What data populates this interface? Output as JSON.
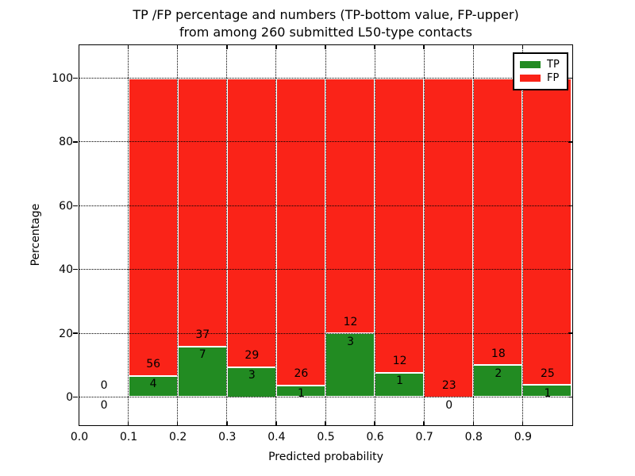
{
  "title": {
    "line1": "TP /FP percentage and numbers (TP-bottom value, FP-upper)",
    "line2": "from among 260 submitted L50-type contacts"
  },
  "chart_data": {
    "type": "bar",
    "stacked": true,
    "normalized_to_percent": true,
    "total_contacts": 260,
    "xlabel": "Predicted probability",
    "ylabel": "Percentage",
    "bin_starts": [
      0.0,
      0.1,
      0.2,
      0.3,
      0.4,
      0.5,
      0.6,
      0.7,
      0.8,
      0.9
    ],
    "bin_width": 0.1,
    "series": [
      {
        "name": "TP",
        "color": "#228b22",
        "counts": [
          0,
          4,
          7,
          3,
          1,
          3,
          1,
          0,
          2,
          1
        ]
      },
      {
        "name": "FP",
        "color": "#fa2318",
        "counts": [
          0,
          56,
          37,
          29,
          26,
          12,
          12,
          23,
          18,
          25
        ]
      }
    ],
    "tp_percent": [
      0,
      6.67,
      15.91,
      9.38,
      3.7,
      20.0,
      7.69,
      0,
      10.0,
      3.85
    ],
    "bar_edge_color": "#ffffff",
    "xlim": [
      0.0,
      1.0
    ],
    "ylim": [
      -9,
      110
    ],
    "xticks": [
      "0.0",
      "0.1",
      "0.2",
      "0.3",
      "0.4",
      "0.5",
      "0.6",
      "0.7",
      "0.8",
      "0.9"
    ],
    "yticks": [
      0,
      20,
      40,
      60,
      80,
      100
    ],
    "grid": {
      "style": "dotted",
      "color": "#000000",
      "on": true
    },
    "legend": {
      "entries": [
        "TP",
        "FP"
      ],
      "position": "upper right"
    }
  }
}
